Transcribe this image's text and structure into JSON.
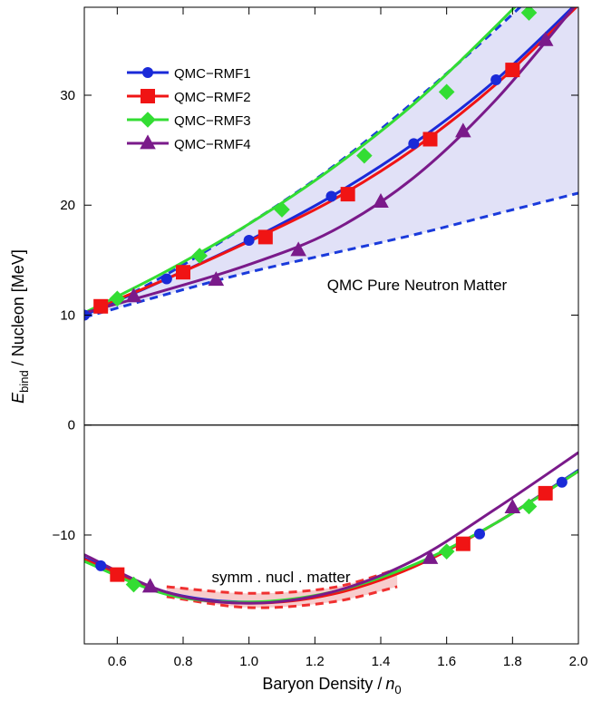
{
  "chart_data": {
    "type": "line",
    "x_label": {
      "text": "Baryon  Density /",
      "var": "n",
      "sub": "0"
    },
    "y_label": {
      "var": "E",
      "sub": "bind",
      "text": "/ Nucleon  [MeV]"
    },
    "annotations": [
      {
        "text": "QMC  Pure  Neutron  Matter",
        "color": "#1a1adb"
      },
      {
        "text": "symm . nucl . matter",
        "color": "#ee1111"
      }
    ],
    "xlim": [
      0.5,
      2.0
    ],
    "ylim": [
      -19.9,
      38
    ],
    "xticks": [
      0.6,
      0.8,
      {
        "value": 1.0,
        "label": "1.0"
      },
      1.2,
      1.4,
      1.6,
      1.8,
      {
        "value": 2.0,
        "label": "2.0"
      }
    ],
    "yticks": [
      {
        "value": -10,
        "label": "−10"
      },
      0,
      10,
      20,
      30
    ],
    "legend": "upper left",
    "bands": [
      {
        "color": "#1a3adb",
        "fill": "#dcdcf6",
        "x": [
          0.5,
          0.75,
          1.0,
          1.25,
          1.5,
          1.75,
          2.0
        ],
        "upper": [
          9.8,
          13.7,
          18.3,
          23.4,
          29.4,
          36,
          43
        ],
        "lower": [
          9.8,
          11.9,
          13.9,
          15.6,
          17.3,
          19.2,
          21.1
        ]
      },
      {
        "color": "#f03030",
        "fill": "#f6c4c4",
        "x": [
          0.75,
          1.0,
          1.25,
          1.45
        ],
        "upper": [
          -14.7,
          -15.3,
          -14.8,
          -13.1
        ],
        "lower": [
          -15.6,
          -16.6,
          -16.1,
          -14.7
        ]
      }
    ],
    "series": [
      {
        "name": "QMC−RMF1",
        "color": "#1a2ad8",
        "marker": "circle",
        "x": [
          0.5,
          0.75,
          1.0,
          1.25,
          1.5,
          1.75,
          2.0,
          null,
          0.5,
          0.75,
          1.0,
          1.25,
          1.5,
          1.75,
          2.0
        ],
        "values": [
          10,
          13.3,
          16.8,
          20.8,
          25.6,
          31.4,
          38.5,
          null,
          -12.1,
          -15.2,
          -16.1,
          -15.3,
          -12.8,
          -8.9,
          -4.1
        ],
        "marker_x": [
          0.5,
          0.75,
          1.0,
          1.25,
          1.5,
          1.75,
          0.55,
          1.7,
          1.95
        ],
        "marker_values": [
          10,
          13.3,
          16.8,
          20.8,
          25.6,
          31.4,
          -12.8,
          -9.9,
          -5.2
        ]
      },
      {
        "name": "QMC−RMF2",
        "color": "#f01414",
        "marker": "square",
        "x": [
          0.5,
          0.75,
          1.0,
          1.25,
          1.5,
          1.75,
          2.0,
          null,
          0.5,
          0.75,
          1.0,
          1.25,
          1.5,
          1.75,
          2.0
        ],
        "values": [
          10.2,
          13.3,
          16.7,
          20.4,
          25.1,
          31.0,
          38.2,
          null,
          -12.2,
          -15.3,
          -16.2,
          -15.4,
          -12.9,
          -8.9,
          -4.2
        ],
        "marker_x": [
          0.55,
          0.8,
          1.05,
          1.3,
          1.55,
          1.8,
          0.6,
          1.65,
          1.9
        ],
        "marker_values": [
          10.8,
          13.9,
          17.1,
          21,
          26,
          32.3,
          -13.6,
          -10.8,
          -6.2
        ]
      },
      {
        "name": "QMC−RMF3",
        "color": "#33dd33",
        "marker": "diamond",
        "x": [
          0.5,
          0.75,
          1.0,
          1.25,
          1.5,
          1.75,
          2.0,
          null,
          0.5,
          0.75,
          1.0,
          1.25,
          1.5,
          1.75,
          2.0
        ],
        "values": [
          10.2,
          14,
          18.3,
          23.3,
          29.2,
          36.3,
          44,
          null,
          -12.4,
          -15.4,
          -16.1,
          -15.2,
          -12.7,
          -8.9,
          -4.2
        ],
        "marker_x": [
          0.6,
          0.85,
          1.1,
          1.35,
          1.6,
          1.85,
          0.65,
          1.6,
          1.85
        ],
        "marker_values": [
          11.5,
          15.4,
          19.6,
          24.5,
          30.3,
          37.5,
          -14.5,
          -11.5,
          -7.4
        ]
      },
      {
        "name": "QMC−RMF4",
        "color": "#7a1a8a",
        "marker": "triangle",
        "x": [
          0.5,
          0.75,
          1.0,
          1.25,
          1.5,
          1.75,
          2.0,
          null,
          0.5,
          0.75,
          1.0,
          1.25,
          1.5,
          1.75,
          2.0
        ],
        "values": [
          10.2,
          12.3,
          14.6,
          17.6,
          22.5,
          29.6,
          38.5,
          null,
          -11.8,
          -15.2,
          -16.2,
          -15.2,
          -12.3,
          -7.6,
          -2.5
        ],
        "marker_x": [
          0.65,
          0.9,
          1.15,
          1.4,
          1.65,
          1.9,
          0.7,
          1.55,
          1.8
        ],
        "marker_values": [
          11.7,
          13.2,
          15.9,
          20.3,
          26.7,
          35,
          -14.7,
          -12.1,
          -7.5
        ]
      }
    ]
  }
}
